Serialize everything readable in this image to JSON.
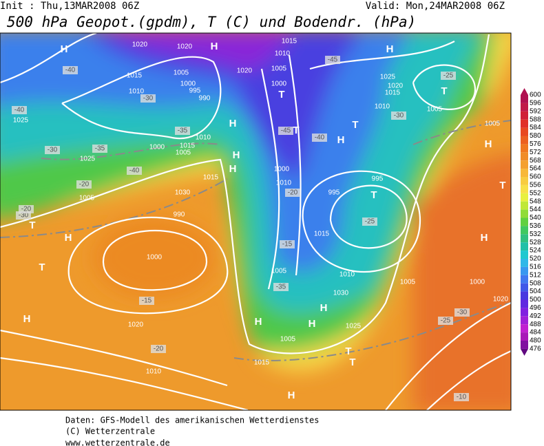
{
  "header": {
    "init": "Init : Thu,13MAR2008 06Z",
    "valid": "Valid: Mon,24MAR2008 06Z",
    "title": "500 hPa Geopot.(gpdm), T (C) und Bodendr. (hPa)"
  },
  "colorbar": {
    "values": [
      600,
      596,
      592,
      588,
      584,
      580,
      576,
      572,
      568,
      564,
      560,
      556,
      552,
      548,
      544,
      540,
      536,
      532,
      528,
      524,
      520,
      516,
      512,
      508,
      504,
      500,
      496,
      492,
      488,
      484,
      480,
      476
    ],
    "colors": [
      "#b01050",
      "#c01848",
      "#d02038",
      "#e03028",
      "#e84820",
      "#ec6020",
      "#f07820",
      "#f08c28",
      "#f4a030",
      "#f8b838",
      "#f8cc40",
      "#f8e048",
      "#e8f040",
      "#c0e838",
      "#90dc38",
      "#60d040",
      "#40c860",
      "#30c080",
      "#20c0a8",
      "#20c8d0",
      "#30b8e8",
      "#3898f0",
      "#4078f0",
      "#4058e8",
      "#4838e0",
      "#6028e0",
      "#8020e0",
      "#a020d8",
      "#c020d0",
      "#a818b8",
      "#8010a0",
      "#600880"
    ]
  },
  "map_labels": [
    "H",
    "1020",
    "1020",
    "H",
    "1015",
    "1010",
    "-45",
    "H",
    "-40",
    "1015",
    "1005",
    "1000",
    "995",
    "990",
    "1020",
    "1005",
    "1000",
    "1025",
    "1020",
    "1015",
    "-25",
    "T",
    "1010",
    "-30",
    "-40",
    "1025",
    "1010",
    "1005",
    "-30",
    "H",
    "T",
    "-45",
    "T",
    "T",
    "H",
    "-40",
    "-35",
    "1010",
    "1000",
    "1015",
    "H",
    "1005",
    "-35",
    "-30",
    "1025",
    "H",
    "H",
    "1005",
    "-40",
    "1000",
    "995",
    "1010",
    "-20",
    "1015",
    "1005",
    "995",
    "T",
    "-20",
    "1030",
    "990",
    "-25",
    "T",
    "-30",
    "-20",
    "H",
    "1015",
    "T",
    "H",
    "-15",
    "1000",
    "T",
    "1005",
    "1010",
    "1005",
    "1000",
    "-35",
    "1030",
    "H",
    "-15",
    "1020",
    "-30",
    "H",
    "H",
    "H",
    "1025",
    "-25",
    "1020",
    "1005",
    "-20",
    "T",
    "1015",
    "T",
    "1010",
    "H",
    "-10"
  ],
  "footer": [
    "Daten: GFS-Modell des amerikanischen Wetterdienstes",
    "(C) Wetterzentrale",
    "www.wetterzentrale.de"
  ]
}
